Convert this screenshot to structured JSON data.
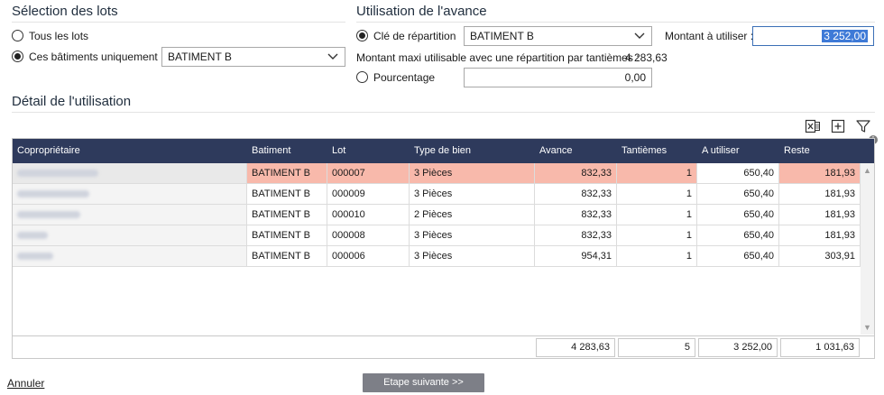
{
  "lots": {
    "title": "Sélection des lots",
    "option_all": "Tous les lots",
    "option_selected": "Ces bâtiments uniquement",
    "building_value": "BATIMENT B"
  },
  "avance": {
    "title": "Utilisation de l'avance",
    "option_key": "Clé de répartition",
    "key_value": "BATIMENT B",
    "amount_label": "Montant à utiliser :",
    "amount_value": "3 252,00",
    "max_label": "Montant maxi utilisable avec une répartition par tantièmes :",
    "max_value": "4 283,63",
    "option_percent": "Pourcentage",
    "percent_value": "0,00"
  },
  "detail": {
    "title": "Détail de l'utilisation",
    "toolbar": {
      "excel_icon": "excel-export-icon",
      "expand_icon": "expand-icon",
      "filter_icon": "filter-icon"
    },
    "columns": [
      "Copropriétaire",
      "Batiment",
      "Lot",
      "Type de bien",
      "Avance",
      "Tantièmes",
      "A utiliser",
      "Reste"
    ],
    "rows": [
      {
        "owner": "BARROSO FAURE",
        "batiment": "BATIMENT B",
        "lot": "000007",
        "type": "3 Pièces",
        "avance": "832,33",
        "tantiemes": "1",
        "utiliser": "650,40",
        "reste": "181,93"
      },
      {
        "owner": "BARROSO LAC",
        "batiment": "BATIMENT B",
        "lot": "000009",
        "type": "3 Pièces",
        "avance": "832,33",
        "tantiemes": "1",
        "utiliser": "650,40",
        "reste": "181,93"
      },
      {
        "owner": "BARROSO LAC",
        "batiment": "BATIMENT B",
        "lot": "000010",
        "type": "2 Pièces",
        "avance": "832,33",
        "tantiemes": "1",
        "utiliser": "650,40",
        "reste": "181,93"
      },
      {
        "owner": "BCPC",
        "batiment": "BATIMENT B",
        "lot": "000008",
        "type": "3 Pièces",
        "avance": "832,33",
        "tantiemes": "1",
        "utiliser": "650,40",
        "reste": "181,93"
      },
      {
        "owner": "STRAN",
        "batiment": "BATIMENT B",
        "lot": "000006",
        "type": "3 Pièces",
        "avance": "954,31",
        "tantiemes": "1",
        "utiliser": "650,40",
        "reste": "303,91"
      }
    ],
    "totals": {
      "avance": "4 283,63",
      "tantiemes": "5",
      "utiliser": "3 252,00",
      "reste": "1 031,63"
    }
  },
  "actions": {
    "cancel": "Annuler",
    "next": "Etape suivante >>"
  },
  "colors": {
    "header_bg": "#2e3a5c",
    "highlight_row": "#f8b9ab",
    "next_button": "#7d7f87"
  }
}
